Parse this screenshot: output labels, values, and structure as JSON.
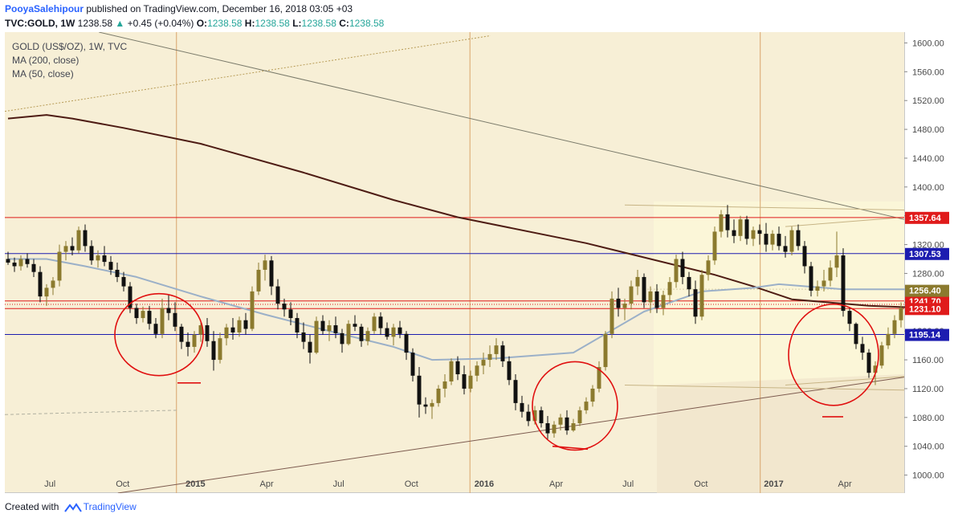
{
  "header": {
    "author": "PooyaSalehipour",
    "published_text": "published on TradingView.com, December 16, 2018 03:05 +03",
    "symbol_line": "TVC:GOLD, 1W",
    "last_price": "1238.58",
    "arrow": "▲",
    "change": "+0.45 (+0.04%)",
    "o_label": "O:",
    "o_value": "1238.58",
    "h_label": "H:",
    "h_value": "1238.58",
    "l_label": "L:",
    "l_value": "1238.58",
    "c_label": "C:",
    "c_value": "1238.58"
  },
  "legend": {
    "title": "GOLD (US$/OZ), 1W, TVC",
    "ma200": "MA (200, close)",
    "ma50": "MA (50, close)"
  },
  "footer": {
    "created_with": "Created with",
    "brand": "TradingView"
  },
  "colors": {
    "background": "#f7efd6",
    "up_candle": "#8b7a2e",
    "down_candle": "#111111",
    "ma200": "#4e1c14",
    "ma50": "#9bb0c8",
    "red_lines": "#e01b1b",
    "blue_lines": "#1c1cb0",
    "circles": "#e01010"
  },
  "chart_data": {
    "type": "candlestick",
    "title": "GOLD (US$/OZ), 1W, TVC",
    "y_ticks": [
      "1600.00",
      "1560.00",
      "1520.00",
      "1480.00",
      "1440.00",
      "1400.00",
      "1360.00",
      "1320.00",
      "1280.00",
      "1240.00",
      "1200.00",
      "1160.00",
      "1120.00",
      "1080.00",
      "1040.00",
      "1000.00"
    ],
    "x_ticks": [
      "Jul",
      "Oct",
      "2015",
      "Apr",
      "Jul",
      "Oct",
      "2016",
      "Apr",
      "Jul",
      "Oct",
      "2017",
      "Apr"
    ],
    "ylim": [
      975,
      1615
    ],
    "x_range": [
      "2014-05-05",
      "2017-06-15"
    ],
    "horizontal_levels": [
      {
        "value": 1357.64,
        "label": "1357.64",
        "color": "red"
      },
      {
        "value": 1307.53,
        "label": "1307.53",
        "color": "blue"
      },
      {
        "value": 1241.7,
        "label": "1241.70",
        "color": "red"
      },
      {
        "value": 1231.1,
        "label": "1231.10",
        "color": "red"
      },
      {
        "value": 1195.14,
        "label": "1195.14",
        "color": "blue"
      }
    ],
    "price_tags": [
      {
        "value": 1256.4,
        "label": "1256.40",
        "color": "olive"
      }
    ],
    "vertical_markers": [
      "2014-12-08",
      "2015-12-14",
      "2016-12-15"
    ],
    "series": [
      {
        "name": "MA (200, close)",
        "points": [
          [
            0,
            1495
          ],
          [
            6,
            1500
          ],
          [
            10,
            1495
          ],
          [
            18,
            1482
          ],
          [
            30,
            1460
          ],
          [
            46,
            1420
          ],
          [
            60,
            1382
          ],
          [
            70,
            1358
          ],
          [
            90,
            1322
          ],
          [
            110,
            1278
          ],
          [
            116,
            1262
          ],
          [
            122,
            1244
          ],
          [
            134,
            1235
          ],
          [
            143,
            1232
          ]
        ]
      },
      {
        "name": "MA (50, close)",
        "points": [
          [
            0,
            1300
          ],
          [
            6,
            1300
          ],
          [
            12,
            1290
          ],
          [
            20,
            1275
          ],
          [
            30,
            1248
          ],
          [
            40,
            1223
          ],
          [
            50,
            1200
          ],
          [
            60,
            1178
          ],
          [
            66,
            1160
          ],
          [
            76,
            1162
          ],
          [
            88,
            1170
          ],
          [
            99,
            1227
          ],
          [
            108,
            1255
          ],
          [
            116,
            1260
          ],
          [
            120,
            1265
          ],
          [
            130,
            1258
          ],
          [
            143,
            1258
          ]
        ]
      }
    ],
    "candles": [
      [
        1300,
        1310,
        1292,
        1295
      ],
      [
        1295,
        1302,
        1282,
        1290
      ],
      [
        1290,
        1305,
        1284,
        1300
      ],
      [
        1300,
        1308,
        1288,
        1293
      ],
      [
        1293,
        1300,
        1275,
        1282
      ],
      [
        1282,
        1290,
        1240,
        1248
      ],
      [
        1248,
        1265,
        1235,
        1260
      ],
      [
        1260,
        1275,
        1250,
        1270
      ],
      [
        1270,
        1320,
        1262,
        1310
      ],
      [
        1310,
        1325,
        1298,
        1318
      ],
      [
        1318,
        1330,
        1305,
        1312
      ],
      [
        1312,
        1345,
        1308,
        1340
      ],
      [
        1340,
        1348,
        1310,
        1318
      ],
      [
        1318,
        1326,
        1292,
        1298
      ],
      [
        1298,
        1312,
        1288,
        1305
      ],
      [
        1305,
        1318,
        1290,
        1296
      ],
      [
        1296,
        1304,
        1278,
        1285
      ],
      [
        1285,
        1295,
        1268,
        1275
      ],
      [
        1275,
        1282,
        1255,
        1262
      ],
      [
        1262,
        1268,
        1225,
        1232
      ],
      [
        1232,
        1238,
        1210,
        1218
      ],
      [
        1218,
        1234,
        1212,
        1228
      ],
      [
        1228,
        1235,
        1202,
        1210
      ],
      [
        1210,
        1218,
        1190,
        1196
      ],
      [
        1196,
        1245,
        1190,
        1232
      ],
      [
        1232,
        1250,
        1215,
        1225
      ],
      [
        1225,
        1240,
        1200,
        1206
      ],
      [
        1206,
        1210,
        1175,
        1185
      ],
      [
        1185,
        1198,
        1165,
        1178
      ],
      [
        1178,
        1200,
        1170,
        1195
      ],
      [
        1195,
        1215,
        1185,
        1208
      ],
      [
        1208,
        1218,
        1178,
        1186
      ],
      [
        1186,
        1200,
        1145,
        1160
      ],
      [
        1160,
        1198,
        1155,
        1190
      ],
      [
        1190,
        1210,
        1180,
        1205
      ],
      [
        1205,
        1218,
        1188,
        1198
      ],
      [
        1198,
        1220,
        1192,
        1215
      ],
      [
        1215,
        1225,
        1195,
        1203
      ],
      [
        1203,
        1262,
        1200,
        1255
      ],
      [
        1255,
        1295,
        1250,
        1285
      ],
      [
        1285,
        1306,
        1270,
        1298
      ],
      [
        1298,
        1304,
        1250,
        1262
      ],
      [
        1262,
        1272,
        1230,
        1238
      ],
      [
        1238,
        1245,
        1220,
        1230
      ],
      [
        1230,
        1240,
        1208,
        1218
      ],
      [
        1218,
        1225,
        1190,
        1198
      ],
      [
        1198,
        1212,
        1175,
        1185
      ],
      [
        1185,
        1195,
        1155,
        1170
      ],
      [
        1170,
        1220,
        1168,
        1214
      ],
      [
        1214,
        1222,
        1195,
        1200
      ],
      [
        1200,
        1215,
        1186,
        1208
      ],
      [
        1208,
        1220,
        1190,
        1197
      ],
      [
        1197,
        1203,
        1170,
        1182
      ],
      [
        1182,
        1215,
        1180,
        1210
      ],
      [
        1210,
        1222,
        1200,
        1206
      ],
      [
        1206,
        1210,
        1178,
        1186
      ],
      [
        1186,
        1205,
        1180,
        1200
      ],
      [
        1200,
        1225,
        1196,
        1220
      ],
      [
        1220,
        1226,
        1195,
        1204
      ],
      [
        1204,
        1212,
        1188,
        1192
      ],
      [
        1192,
        1210,
        1180,
        1205
      ],
      [
        1205,
        1214,
        1190,
        1196
      ],
      [
        1196,
        1200,
        1160,
        1170
      ],
      [
        1170,
        1176,
        1130,
        1138
      ],
      [
        1138,
        1150,
        1080,
        1098
      ],
      [
        1098,
        1108,
        1085,
        1095
      ],
      [
        1095,
        1105,
        1078,
        1100
      ],
      [
        1100,
        1125,
        1095,
        1120
      ],
      [
        1120,
        1140,
        1108,
        1130
      ],
      [
        1130,
        1162,
        1125,
        1158
      ],
      [
        1158,
        1165,
        1132,
        1140
      ],
      [
        1140,
        1152,
        1112,
        1120
      ],
      [
        1120,
        1145,
        1115,
        1138
      ],
      [
        1138,
        1158,
        1130,
        1152
      ],
      [
        1152,
        1170,
        1140,
        1160
      ],
      [
        1160,
        1180,
        1150,
        1168
      ],
      [
        1168,
        1190,
        1160,
        1180
      ],
      [
        1180,
        1186,
        1150,
        1158
      ],
      [
        1158,
        1165,
        1125,
        1132
      ],
      [
        1132,
        1140,
        1090,
        1100
      ],
      [
        1100,
        1110,
        1080,
        1088
      ],
      [
        1088,
        1098,
        1068,
        1075
      ],
      [
        1075,
        1096,
        1070,
        1090
      ],
      [
        1090,
        1095,
        1066,
        1072
      ],
      [
        1072,
        1082,
        1050,
        1058
      ],
      [
        1058,
        1075,
        1052,
        1070
      ],
      [
        1070,
        1085,
        1062,
        1080
      ],
      [
        1080,
        1090,
        1056,
        1062
      ],
      [
        1062,
        1078,
        1060,
        1072
      ],
      [
        1072,
        1095,
        1068,
        1090
      ],
      [
        1090,
        1108,
        1085,
        1102
      ],
      [
        1102,
        1125,
        1095,
        1120
      ],
      [
        1120,
        1158,
        1115,
        1150
      ],
      [
        1150,
        1200,
        1145,
        1196
      ],
      [
        1196,
        1255,
        1190,
        1245
      ],
      [
        1245,
        1260,
        1220,
        1232
      ],
      [
        1232,
        1245,
        1215,
        1238
      ],
      [
        1238,
        1270,
        1230,
        1262
      ],
      [
        1262,
        1285,
        1250,
        1275
      ],
      [
        1275,
        1280,
        1232,
        1240
      ],
      [
        1240,
        1262,
        1225,
        1255
      ],
      [
        1255,
        1265,
        1225,
        1232
      ],
      [
        1232,
        1256,
        1222,
        1250
      ],
      [
        1250,
        1275,
        1240,
        1268
      ],
      [
        1268,
        1306,
        1260,
        1300
      ],
      [
        1300,
        1310,
        1265,
        1275
      ],
      [
        1275,
        1282,
        1248,
        1258
      ],
      [
        1258,
        1270,
        1210,
        1220
      ],
      [
        1220,
        1285,
        1215,
        1278
      ],
      [
        1278,
        1305,
        1270,
        1298
      ],
      [
        1298,
        1345,
        1292,
        1338
      ],
      [
        1338,
        1368,
        1330,
        1362
      ],
      [
        1362,
        1375,
        1330,
        1340
      ],
      [
        1340,
        1355,
        1322,
        1332
      ],
      [
        1332,
        1360,
        1325,
        1355
      ],
      [
        1355,
        1360,
        1320,
        1328
      ],
      [
        1328,
        1345,
        1318,
        1340
      ],
      [
        1340,
        1348,
        1320,
        1335
      ],
      [
        1335,
        1350,
        1310,
        1320
      ],
      [
        1320,
        1340,
        1312,
        1335
      ],
      [
        1335,
        1345,
        1312,
        1318
      ],
      [
        1318,
        1332,
        1302,
        1310
      ],
      [
        1310,
        1345,
        1305,
        1340
      ],
      [
        1340,
        1348,
        1312,
        1318
      ],
      [
        1318,
        1325,
        1280,
        1290
      ],
      [
        1290,
        1296,
        1248,
        1256
      ],
      [
        1256,
        1270,
        1248,
        1262
      ],
      [
        1262,
        1285,
        1255,
        1270
      ],
      [
        1270,
        1298,
        1262,
        1288
      ],
      [
        1288,
        1338,
        1275,
        1305
      ],
      [
        1305,
        1315,
        1220,
        1228
      ],
      [
        1228,
        1232,
        1200,
        1210
      ],
      [
        1210,
        1212,
        1175,
        1182
      ],
      [
        1182,
        1192,
        1160,
        1170
      ],
      [
        1170,
        1175,
        1135,
        1142
      ],
      [
        1142,
        1158,
        1125,
        1152
      ],
      [
        1152,
        1185,
        1148,
        1180
      ],
      [
        1180,
        1205,
        1175,
        1196
      ],
      [
        1196,
        1222,
        1190,
        1215
      ],
      [
        1215,
        1240,
        1205,
        1232
      ]
    ]
  }
}
